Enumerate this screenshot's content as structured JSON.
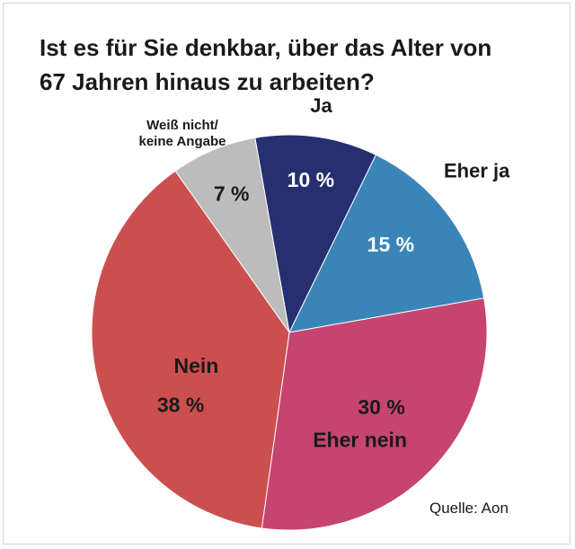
{
  "title_lines": [
    "Ist es für Sie denkbar, über das Alter von",
    "67 Jahren hinaus zu arbeiten?"
  ],
  "source": "Quelle: Aon",
  "colors": {
    "ja": "#263070",
    "eher_ja": "#3a85b8",
    "eher_nein": "#c64470",
    "nein": "#cc4f4f",
    "weiss_nicht": "#bcbcbc"
  },
  "chart_data": {
    "type": "pie",
    "title": "Ist es für Sie denkbar, über das Alter von 67 Jahren hinaus zu arbeiten?",
    "start_angle_deg": -10,
    "slices": [
      {
        "key": "ja",
        "label": "Ja",
        "value": 10,
        "value_label": "10 %",
        "color": "#263070",
        "value_text_color": "#ffffff",
        "label_outside": true,
        "label_lines": [
          "Ja"
        ]
      },
      {
        "key": "eher_ja",
        "label": "Eher ja",
        "value": 15,
        "value_label": "15 %",
        "color": "#3a85b8",
        "value_text_color": "#ffffff",
        "label_outside": true,
        "label_lines": [
          "Eher ja"
        ]
      },
      {
        "key": "eher_nein",
        "label": "Eher nein",
        "value": 30,
        "value_label": "30 %",
        "color": "#c64470",
        "value_text_color": "#1a1a1a",
        "label_outside": false,
        "label_lines": [
          "Eher nein"
        ]
      },
      {
        "key": "nein",
        "label": "Nein",
        "value": 38,
        "value_label": "38 %",
        "color": "#cc4f4f",
        "value_text_color": "#1a1a1a",
        "label_outside": false,
        "label_lines": [
          "Nein"
        ]
      },
      {
        "key": "weiss_nicht",
        "label": "Weiß nicht/ keine Angabe",
        "value": 7,
        "value_label": "7 %",
        "color": "#bcbcbc",
        "value_text_color": "#1a1a1a",
        "label_outside": true,
        "label_lines": [
          "Weiß nicht/",
          "keine Angabe"
        ]
      }
    ],
    "unit": "%"
  }
}
